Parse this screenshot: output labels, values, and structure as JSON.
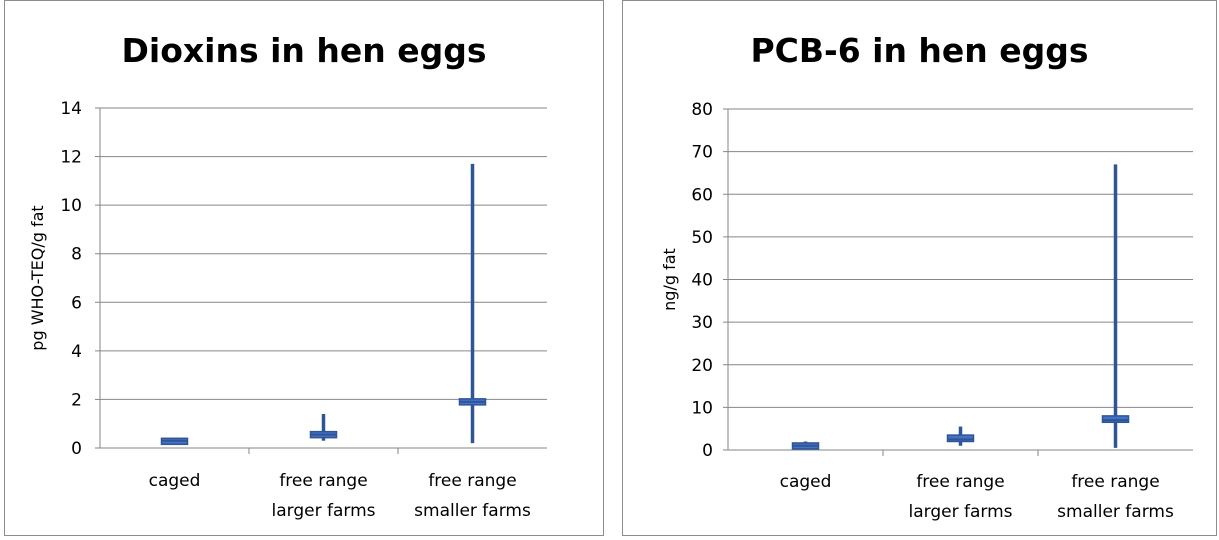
{
  "colors": {
    "series": "#4472c4",
    "series_dark": "#2f5597",
    "grid": "#868686",
    "axis": "#868686"
  },
  "chart_data": [
    {
      "type": "box",
      "title": "Dioxins in hen eggs",
      "ylabel": "pg WHO-TEQ/g fat",
      "xlabel": "",
      "ylim": [
        0,
        14
      ],
      "yticks": [
        0,
        2,
        4,
        6,
        8,
        10,
        12,
        14
      ],
      "ytick_labels": [
        "0",
        "2",
        "4",
        "6",
        "8",
        "10",
        "12",
        "14"
      ],
      "grid": true,
      "categories": [
        {
          "lines": [
            "caged"
          ]
        },
        {
          "lines": [
            "free range",
            "larger farms"
          ]
        },
        {
          "lines": [
            "free range",
            "smaller farms"
          ]
        }
      ],
      "series": [
        {
          "values": [
            {
              "min": 0.2,
              "q1": 0.2,
              "median": 0.3,
              "q3": 0.35,
              "max": 0.4
            },
            {
              "min": 0.3,
              "q1": 0.45,
              "median": 0.55,
              "q3": 0.65,
              "max": 1.4
            },
            {
              "min": 0.2,
              "q1": 1.8,
              "median": 1.9,
              "q3": 2.0,
              "max": 11.7
            }
          ]
        }
      ]
    },
    {
      "type": "box",
      "title": "PCB-6 in hen eggs",
      "ylabel": "ng/g fat",
      "xlabel": "",
      "ylim": [
        0,
        80
      ],
      "yticks": [
        0,
        10,
        20,
        30,
        40,
        50,
        60,
        70,
        80
      ],
      "ytick_labels": [
        "0",
        "10",
        "20",
        "30",
        "40",
        "50",
        "60",
        "70",
        "80"
      ],
      "grid": true,
      "categories": [
        {
          "lines": [
            "caged"
          ]
        },
        {
          "lines": [
            "free range",
            "larger farms"
          ]
        },
        {
          "lines": [
            "free range",
            "smaller farms"
          ]
        }
      ],
      "series": [
        {
          "values": [
            {
              "min": 0.3,
              "q1": 0.4,
              "median": 1.0,
              "q3": 1.5,
              "max": 2.0
            },
            {
              "min": 1.0,
              "q1": 2.0,
              "median": 2.5,
              "q3": 3.5,
              "max": 5.5
            },
            {
              "min": 0.5,
              "q1": 6.5,
              "median": 7.0,
              "q3": 8.0,
              "max": 67.0
            }
          ]
        }
      ]
    }
  ]
}
